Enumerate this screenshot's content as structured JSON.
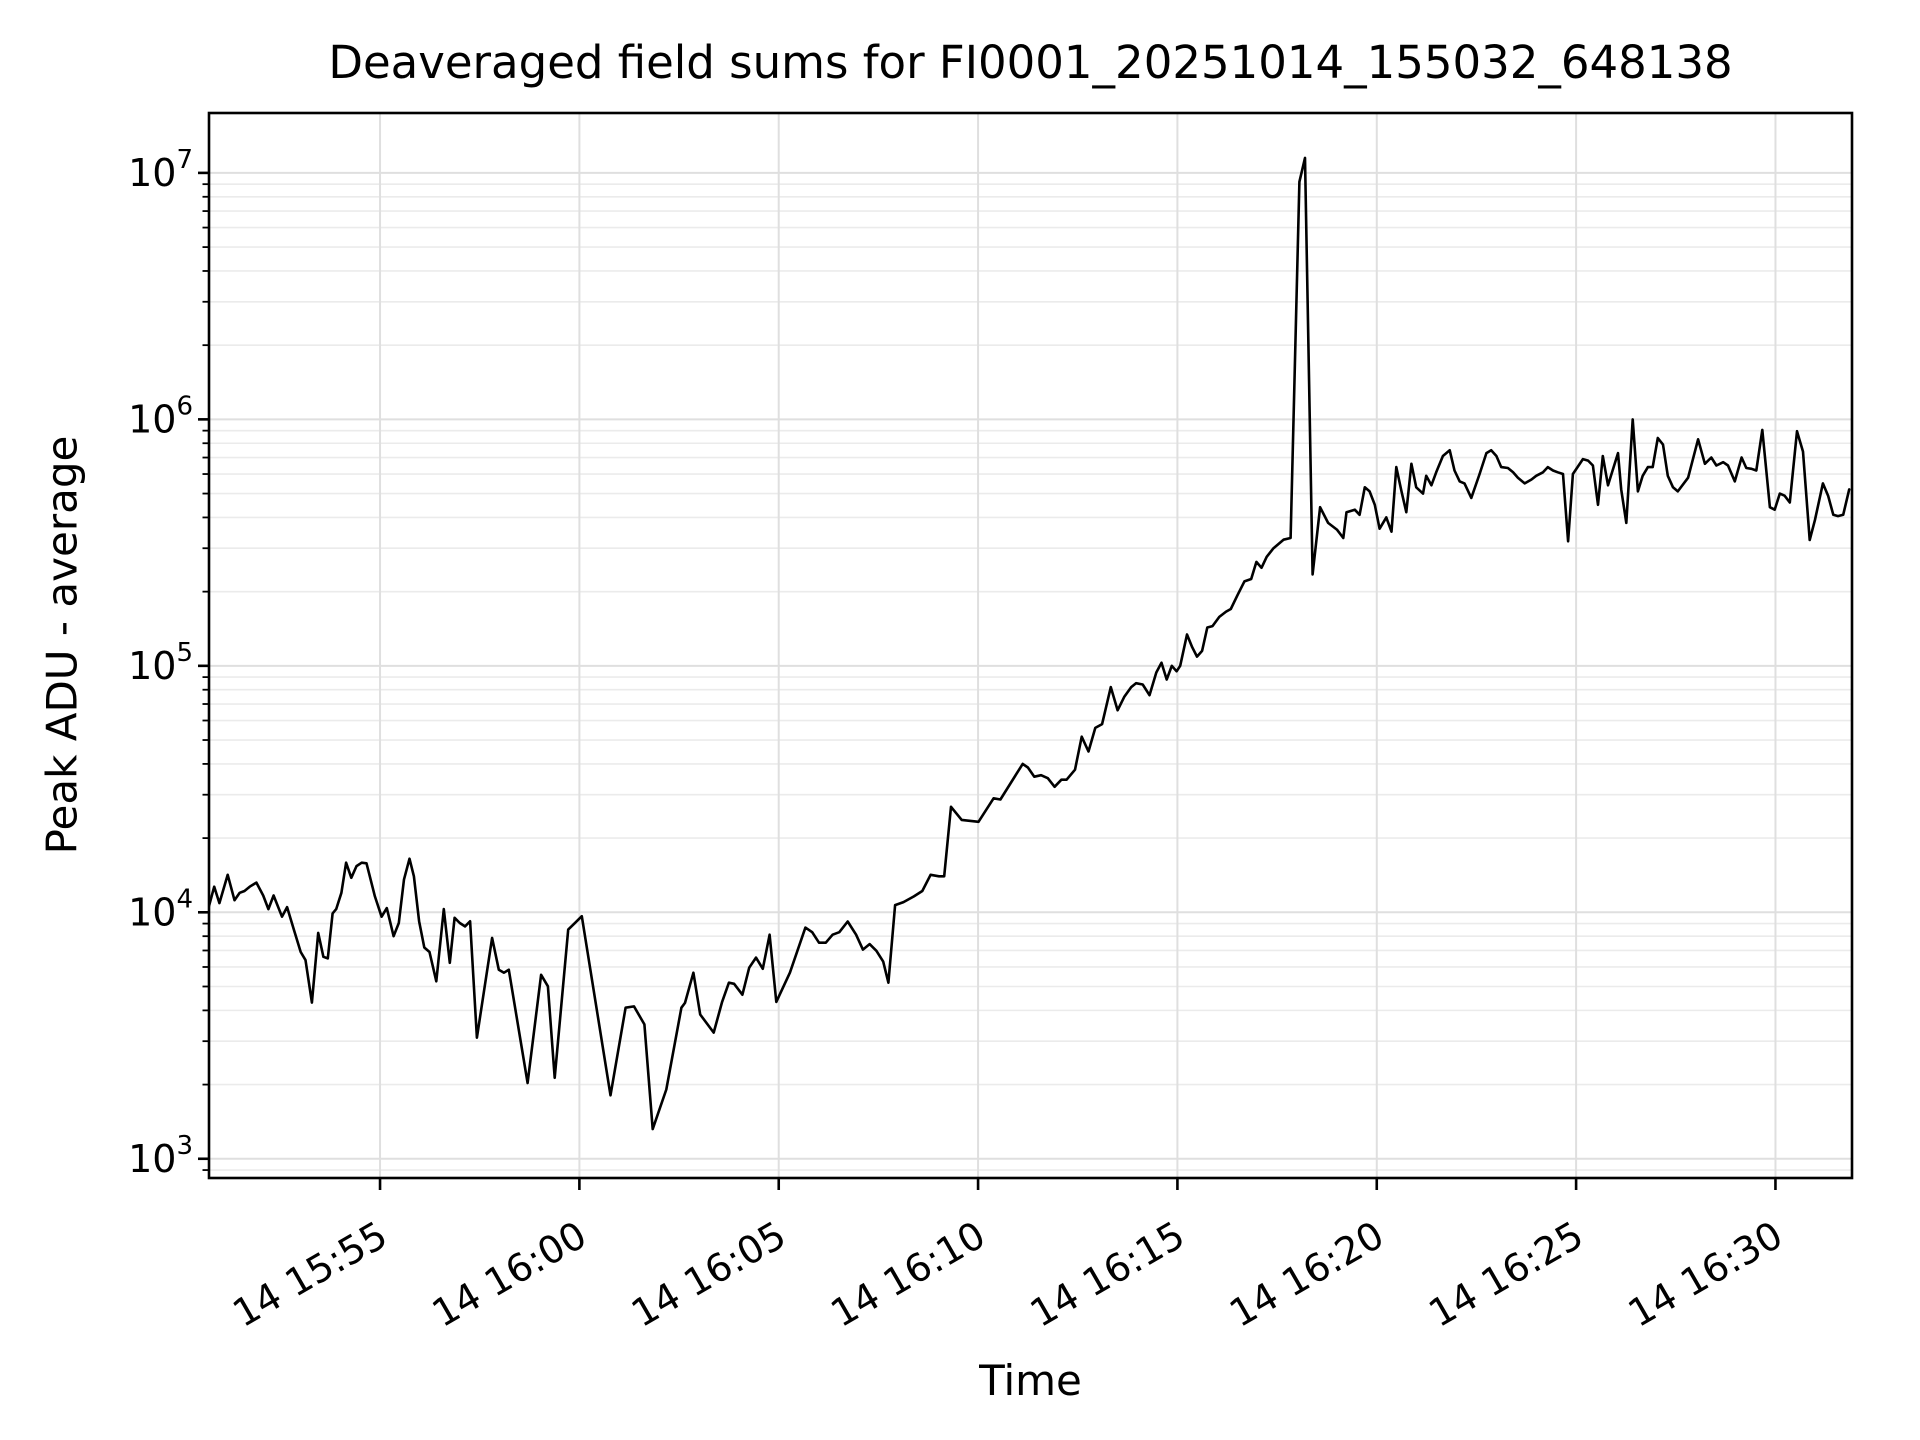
{
  "chart_data": {
    "type": "line",
    "title": "Deaveraged field sums for FI0001_20251014_155032_648138",
    "xlabel": "Time",
    "ylabel": "Peak ADU - average",
    "legend": null,
    "grid": {
      "vertical_major": true,
      "horizontal_major": true,
      "horizontal_minor": true
    },
    "style": {
      "line_color": "#000000",
      "grid_major_color": "#dfdfdf",
      "grid_minor_color": "#ebebeb",
      "spine_color": "#000000",
      "background": "#ffffff"
    },
    "x_axis": {
      "unit": "minutes after day-14 15:50:00",
      "min": 0.71,
      "max": 41.92,
      "ticks": [
        {
          "t": 5,
          "label": "14 15:55"
        },
        {
          "t": 10,
          "label": "14 16:00"
        },
        {
          "t": 15,
          "label": "14 16:05"
        },
        {
          "t": 20,
          "label": "14 16:10"
        },
        {
          "t": 25,
          "label": "14 16:15"
        },
        {
          "t": 30,
          "label": "14 16:20"
        },
        {
          "t": 35,
          "label": "14 16:25"
        },
        {
          "t": 40,
          "label": "14 16:30"
        }
      ]
    },
    "y_axis": {
      "scale": "log10",
      "min_exp": 2.922,
      "max_exp": 7.243,
      "major_exps": [
        3,
        4,
        5,
        6,
        7
      ],
      "tick_label_base": "10"
    },
    "series": [
      {
        "name": "Peak ADU - average",
        "points": [
          [
            0.71,
            10600
          ],
          [
            0.84,
            12700
          ],
          [
            0.97,
            10900
          ],
          [
            1.18,
            14200
          ],
          [
            1.35,
            11200
          ],
          [
            1.48,
            12000
          ],
          [
            1.6,
            12200
          ],
          [
            1.73,
            12700
          ],
          [
            1.9,
            13200
          ],
          [
            2.07,
            11700
          ],
          [
            2.2,
            10300
          ],
          [
            2.33,
            11700
          ],
          [
            2.54,
            9600
          ],
          [
            2.67,
            10500
          ],
          [
            2.84,
            8500
          ],
          [
            3.01,
            6900
          ],
          [
            3.13,
            6400
          ],
          [
            3.29,
            4300
          ],
          [
            3.45,
            8250
          ],
          [
            3.58,
            6600
          ],
          [
            3.69,
            6500
          ],
          [
            3.81,
            9900
          ],
          [
            3.9,
            10300
          ],
          [
            4.03,
            12000
          ],
          [
            4.15,
            15900
          ],
          [
            4.28,
            13800
          ],
          [
            4.41,
            15400
          ],
          [
            4.54,
            15900
          ],
          [
            4.66,
            15800
          ],
          [
            4.87,
            11600
          ],
          [
            5.04,
            9600
          ],
          [
            5.17,
            10400
          ],
          [
            5.34,
            8000
          ],
          [
            5.47,
            9050
          ],
          [
            5.6,
            13600
          ],
          [
            5.74,
            16500
          ],
          [
            5.85,
            14000
          ],
          [
            5.98,
            9200
          ],
          [
            6.11,
            7200
          ],
          [
            6.24,
            6900
          ],
          [
            6.41,
            5250
          ],
          [
            6.6,
            10300
          ],
          [
            6.75,
            6240
          ],
          [
            6.87,
            9500
          ],
          [
            7.0,
            9050
          ],
          [
            7.13,
            8770
          ],
          [
            7.26,
            9190
          ],
          [
            7.43,
            3100
          ],
          [
            7.81,
            7870
          ],
          [
            7.98,
            5850
          ],
          [
            8.11,
            5690
          ],
          [
            8.23,
            5850
          ],
          [
            8.7,
            2030
          ],
          [
            9.04,
            5580
          ],
          [
            9.21,
            5010
          ],
          [
            9.38,
            2130
          ],
          [
            9.72,
            8510
          ],
          [
            9.89,
            9060
          ],
          [
            10.06,
            9640
          ],
          [
            10.78,
            1810
          ],
          [
            11.16,
            4100
          ],
          [
            11.37,
            4150
          ],
          [
            11.63,
            3510
          ],
          [
            11.84,
            1320
          ],
          [
            12.18,
            1910
          ],
          [
            12.56,
            4100
          ],
          [
            12.65,
            4290
          ],
          [
            12.86,
            5690
          ],
          [
            13.03,
            3850
          ],
          [
            13.37,
            3250
          ],
          [
            13.58,
            4330
          ],
          [
            13.75,
            5180
          ],
          [
            13.88,
            5130
          ],
          [
            14.09,
            4630
          ],
          [
            14.26,
            5960
          ],
          [
            14.43,
            6550
          ],
          [
            14.6,
            5900
          ],
          [
            14.77,
            8110
          ],
          [
            14.94,
            4330
          ],
          [
            15.28,
            5690
          ],
          [
            15.67,
            8670
          ],
          [
            15.84,
            8300
          ],
          [
            16.01,
            7530
          ],
          [
            16.18,
            7530
          ],
          [
            16.35,
            8110
          ],
          [
            16.52,
            8300
          ],
          [
            16.73,
            9180
          ],
          [
            16.94,
            8110
          ],
          [
            17.11,
            7060
          ],
          [
            17.28,
            7430
          ],
          [
            17.45,
            6980
          ],
          [
            17.62,
            6310
          ],
          [
            17.75,
            5180
          ],
          [
            17.92,
            10700
          ],
          [
            18.13,
            11000
          ],
          [
            18.39,
            11600
          ],
          [
            18.6,
            12200
          ],
          [
            18.81,
            14200
          ],
          [
            19.02,
            14000
          ],
          [
            19.15,
            14000
          ],
          [
            19.32,
            26800
          ],
          [
            19.59,
            23700
          ],
          [
            20.01,
            23300
          ],
          [
            20.39,
            29000
          ],
          [
            20.56,
            28700
          ],
          [
            21.12,
            40000
          ],
          [
            21.25,
            38700
          ],
          [
            21.41,
            35500
          ],
          [
            21.58,
            36000
          ],
          [
            21.75,
            35000
          ],
          [
            21.92,
            32300
          ],
          [
            22.09,
            34500
          ],
          [
            22.22,
            34500
          ],
          [
            22.43,
            37900
          ],
          [
            22.6,
            51600
          ],
          [
            22.77,
            44900
          ],
          [
            22.94,
            56000
          ],
          [
            23.11,
            58000
          ],
          [
            23.33,
            82000
          ],
          [
            23.5,
            66000
          ],
          [
            23.67,
            75000
          ],
          [
            23.84,
            82000
          ],
          [
            23.96,
            85000
          ],
          [
            24.13,
            84000
          ],
          [
            24.3,
            76000
          ],
          [
            24.47,
            94000
          ],
          [
            24.6,
            103000
          ],
          [
            24.73,
            88000
          ],
          [
            24.86,
            100000
          ],
          [
            24.98,
            95000
          ],
          [
            25.07,
            100000
          ],
          [
            25.24,
            134000
          ],
          [
            25.37,
            119000
          ],
          [
            25.49,
            109000
          ],
          [
            25.62,
            115000
          ],
          [
            25.75,
            143000
          ],
          [
            25.88,
            145000
          ],
          [
            26.05,
            158000
          ],
          [
            26.22,
            166000
          ],
          [
            26.34,
            170000
          ],
          [
            26.51,
            194000
          ],
          [
            26.68,
            220000
          ],
          [
            26.85,
            225000
          ],
          [
            26.98,
            264000
          ],
          [
            27.11,
            250000
          ],
          [
            27.24,
            277000
          ],
          [
            27.41,
            300000
          ],
          [
            27.66,
            325000
          ],
          [
            27.84,
            330000
          ],
          [
            28.06,
            9200000
          ],
          [
            28.2,
            11500000
          ],
          [
            28.39,
            235000
          ],
          [
            28.58,
            440000
          ],
          [
            28.78,
            380000
          ],
          [
            29.0,
            357000
          ],
          [
            29.16,
            330000
          ],
          [
            29.24,
            420000
          ],
          [
            29.45,
            430000
          ],
          [
            29.57,
            410000
          ],
          [
            29.7,
            530000
          ],
          [
            29.82,
            510000
          ],
          [
            29.95,
            450000
          ],
          [
            30.07,
            360000
          ],
          [
            30.24,
            400000
          ],
          [
            30.37,
            350000
          ],
          [
            30.49,
            640000
          ],
          [
            30.62,
            510000
          ],
          [
            30.74,
            420000
          ],
          [
            30.87,
            660000
          ],
          [
            30.99,
            530000
          ],
          [
            31.16,
            500000
          ],
          [
            31.24,
            590000
          ],
          [
            31.37,
            540000
          ],
          [
            31.49,
            610000
          ],
          [
            31.66,
            710000
          ],
          [
            31.83,
            750000
          ],
          [
            31.95,
            620000
          ],
          [
            32.08,
            560000
          ],
          [
            32.2,
            550000
          ],
          [
            32.37,
            480000
          ],
          [
            32.58,
            600000
          ],
          [
            32.75,
            730000
          ],
          [
            32.87,
            750000
          ],
          [
            33.0,
            710000
          ],
          [
            33.12,
            640000
          ],
          [
            33.29,
            635000
          ],
          [
            33.42,
            610000
          ],
          [
            33.54,
            580000
          ],
          [
            33.71,
            550000
          ],
          [
            33.88,
            570000
          ],
          [
            34.0,
            590000
          ],
          [
            34.17,
            610000
          ],
          [
            34.29,
            640000
          ],
          [
            34.42,
            620000
          ],
          [
            34.54,
            610000
          ],
          [
            34.67,
            600000
          ],
          [
            34.8,
            320000
          ],
          [
            34.92,
            600000
          ],
          [
            35.17,
            690000
          ],
          [
            35.3,
            680000
          ],
          [
            35.42,
            650000
          ],
          [
            35.55,
            450000
          ],
          [
            35.67,
            710000
          ],
          [
            35.8,
            540000
          ],
          [
            36.05,
            730000
          ],
          [
            36.13,
            520000
          ],
          [
            36.26,
            380000
          ],
          [
            36.42,
            1000000
          ],
          [
            36.55,
            510000
          ],
          [
            36.67,
            590000
          ],
          [
            36.8,
            640000
          ],
          [
            36.92,
            640000
          ],
          [
            37.05,
            840000
          ],
          [
            37.18,
            790000
          ],
          [
            37.3,
            590000
          ],
          [
            37.43,
            530000
          ],
          [
            37.55,
            510000
          ],
          [
            37.81,
            580000
          ],
          [
            38.06,
            830000
          ],
          [
            38.23,
            660000
          ],
          [
            38.39,
            700000
          ],
          [
            38.52,
            650000
          ],
          [
            38.69,
            670000
          ],
          [
            38.81,
            650000
          ],
          [
            38.98,
            560000
          ],
          [
            39.15,
            700000
          ],
          [
            39.27,
            635000
          ],
          [
            39.4,
            630000
          ],
          [
            39.52,
            620000
          ],
          [
            39.67,
            906000
          ],
          [
            39.86,
            440000
          ],
          [
            39.98,
            430000
          ],
          [
            40.11,
            500000
          ],
          [
            40.23,
            490000
          ],
          [
            40.36,
            460000
          ],
          [
            40.54,
            895000
          ],
          [
            40.69,
            740000
          ],
          [
            40.86,
            324000
          ],
          [
            40.99,
            390000
          ],
          [
            41.19,
            550000
          ],
          [
            41.32,
            490000
          ],
          [
            41.45,
            410000
          ],
          [
            41.57,
            405000
          ],
          [
            41.7,
            410000
          ],
          [
            41.85,
            520000
          ]
        ]
      }
    ]
  }
}
